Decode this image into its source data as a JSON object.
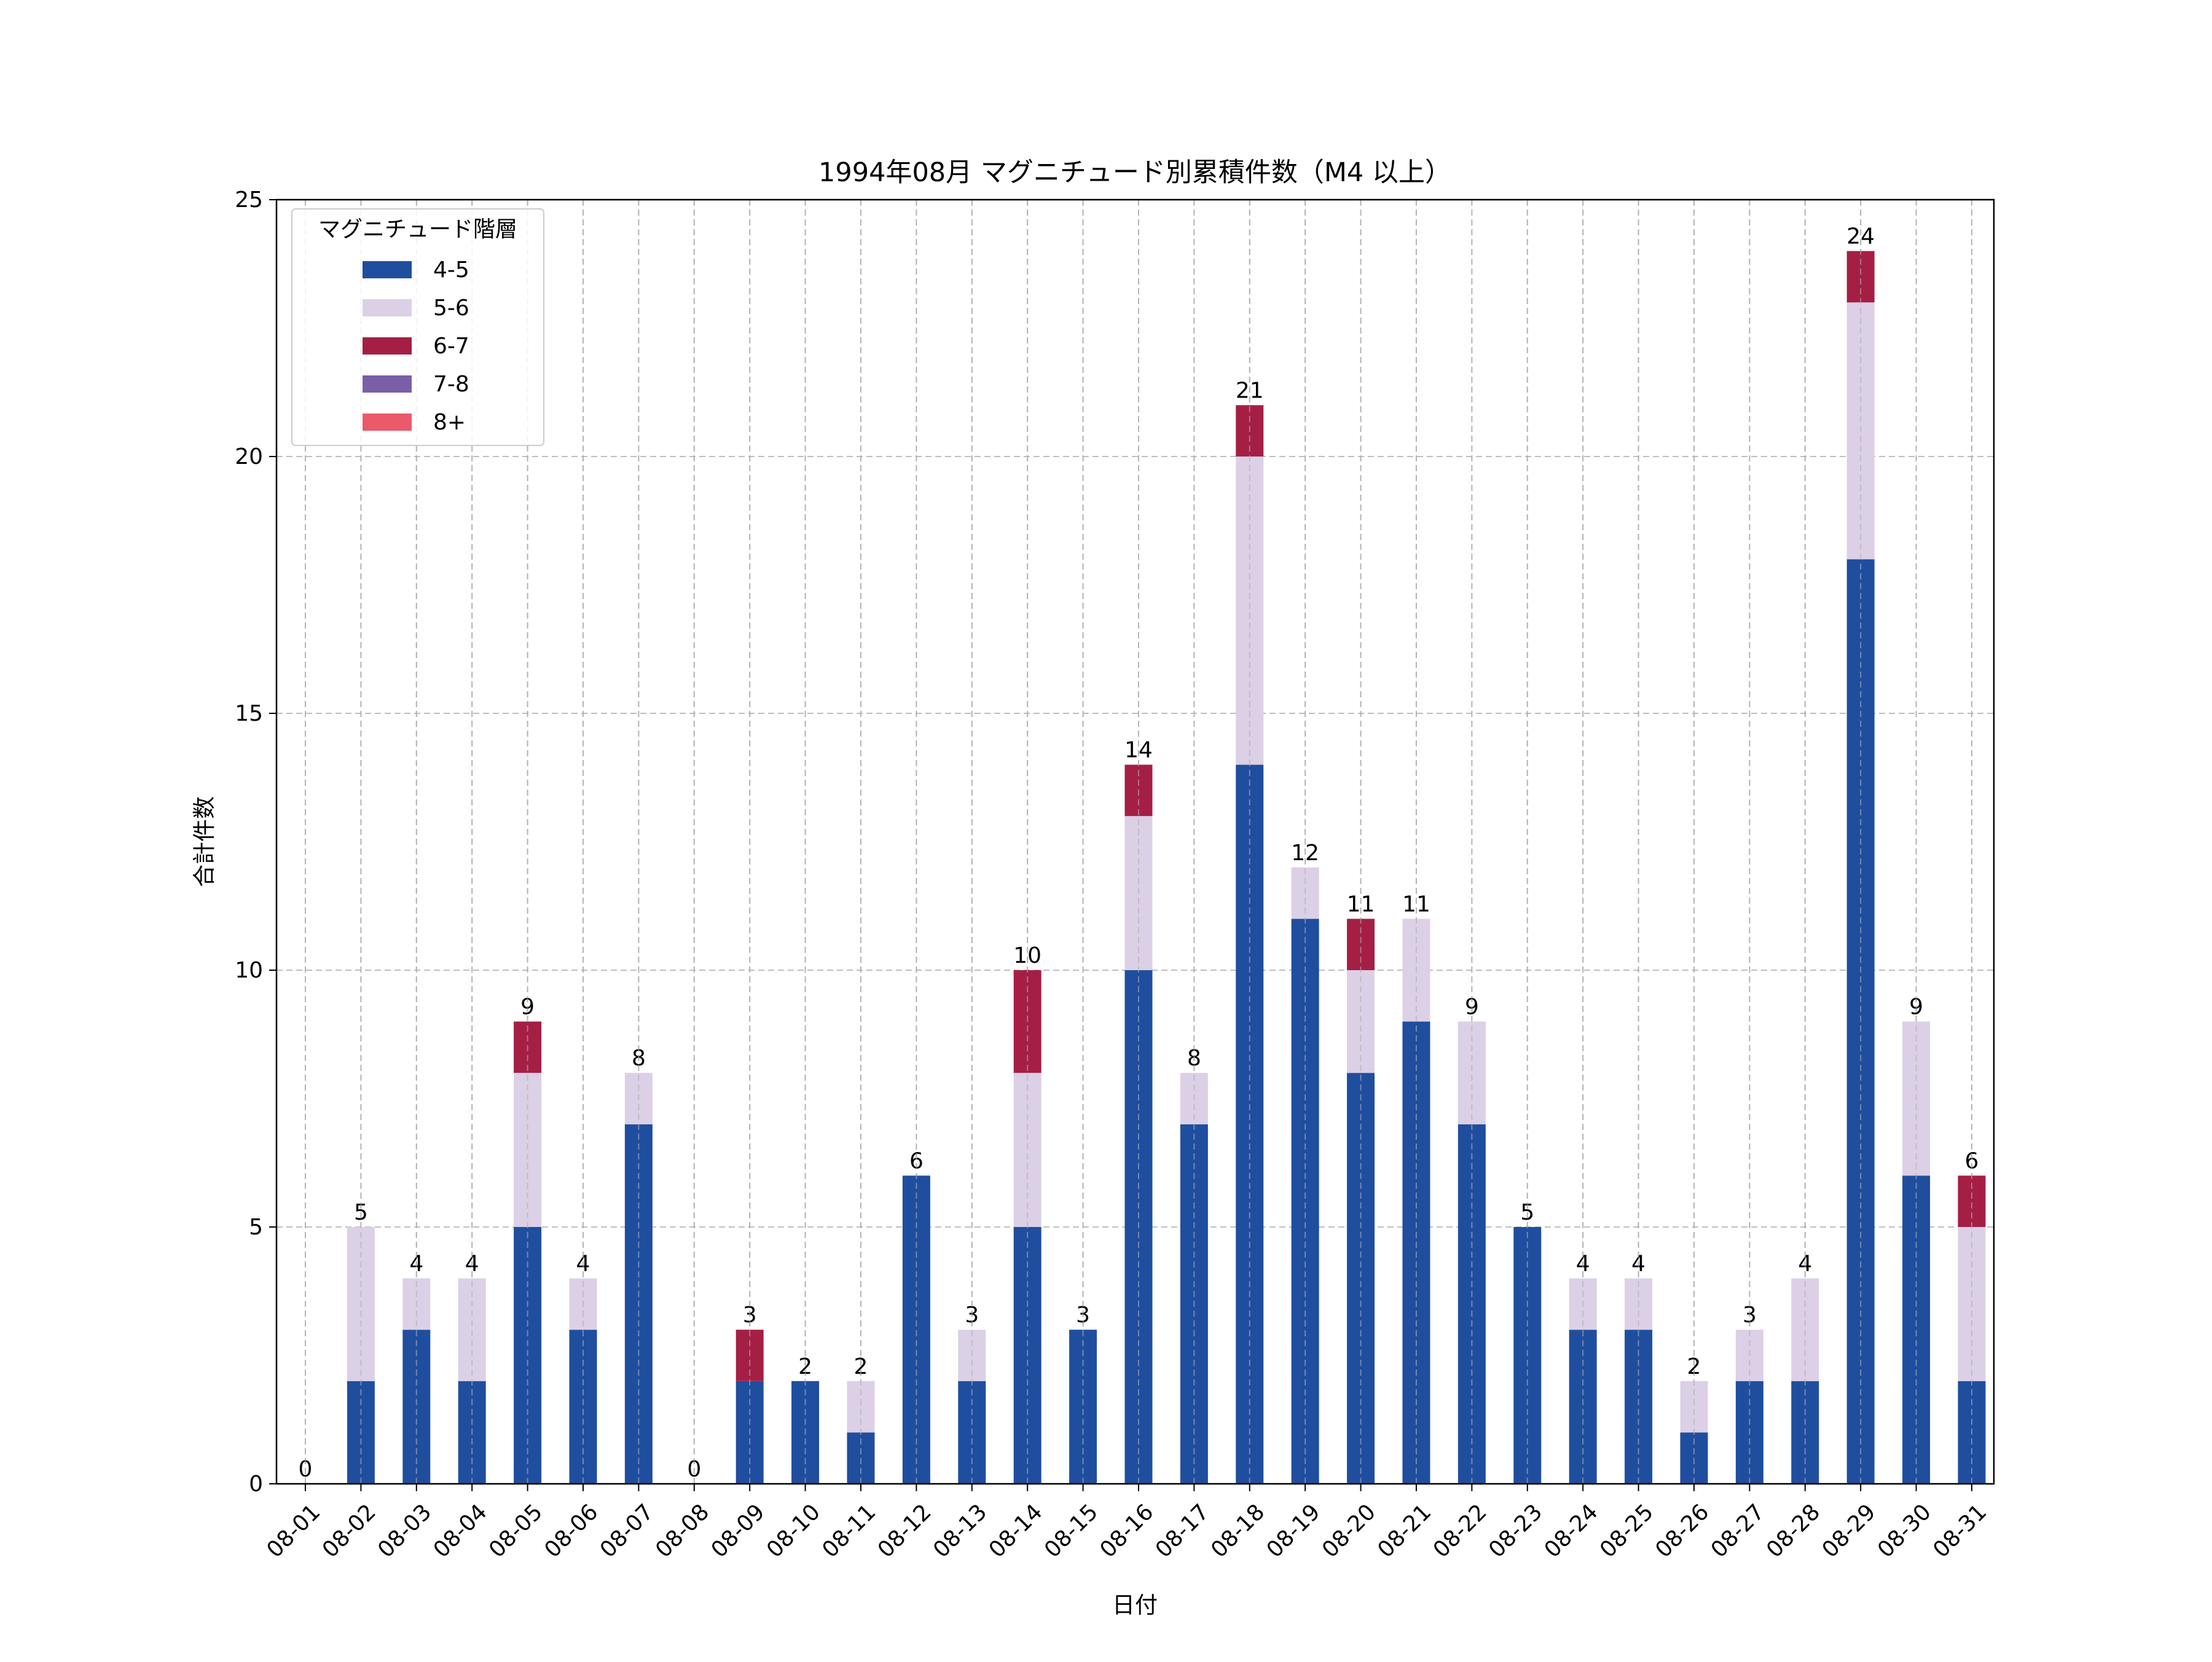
{
  "chart_data": {
    "type": "bar",
    "stacked": true,
    "title": "1994年08月 マグニチュード別累積件数（M4 以上）",
    "xlabel": "日付",
    "ylabel": "合計件数",
    "ylim": [
      0,
      25
    ],
    "yticks": [
      0,
      5,
      10,
      15,
      20,
      25
    ],
    "grid": true,
    "legend": {
      "title": "マグニチュード階層",
      "position": "top-left"
    },
    "categories": [
      "08-01",
      "08-02",
      "08-03",
      "08-04",
      "08-05",
      "08-06",
      "08-07",
      "08-08",
      "08-09",
      "08-10",
      "08-11",
      "08-12",
      "08-13",
      "08-14",
      "08-15",
      "08-16",
      "08-17",
      "08-18",
      "08-19",
      "08-20",
      "08-21",
      "08-22",
      "08-23",
      "08-24",
      "08-25",
      "08-26",
      "08-27",
      "08-28",
      "08-29",
      "08-30",
      "08-31"
    ],
    "series": [
      {
        "name": "4-5",
        "color": "#1f4e9f",
        "values": [
          0,
          2,
          3,
          2,
          5,
          3,
          7,
          0,
          2,
          2,
          1,
          6,
          2,
          5,
          3,
          10,
          7,
          14,
          11,
          8,
          9,
          7,
          5,
          3,
          3,
          1,
          2,
          2,
          18,
          6,
          2
        ]
      },
      {
        "name": "5-6",
        "color": "#dcd0e6",
        "values": [
          0,
          3,
          1,
          2,
          3,
          1,
          1,
          0,
          0,
          0,
          1,
          0,
          1,
          3,
          0,
          3,
          1,
          6,
          1,
          2,
          2,
          2,
          0,
          1,
          1,
          1,
          1,
          2,
          5,
          3,
          3
        ]
      },
      {
        "name": "6-7",
        "color": "#a51f45",
        "values": [
          0,
          0,
          0,
          0,
          1,
          0,
          0,
          0,
          1,
          0,
          0,
          0,
          0,
          2,
          0,
          1,
          0,
          1,
          0,
          1,
          0,
          0,
          0,
          0,
          0,
          0,
          0,
          0,
          1,
          0,
          1
        ]
      },
      {
        "name": "7-8",
        "color": "#7a5fa8",
        "values": [
          0,
          0,
          0,
          0,
          0,
          0,
          0,
          0,
          0,
          0,
          0,
          0,
          0,
          0,
          0,
          0,
          0,
          0,
          0,
          0,
          0,
          0,
          0,
          0,
          0,
          0,
          0,
          0,
          0,
          0,
          0
        ]
      },
      {
        "name": "8+",
        "color": "#ea5a6a",
        "values": [
          0,
          0,
          0,
          0,
          0,
          0,
          0,
          0,
          0,
          0,
          0,
          0,
          0,
          0,
          0,
          0,
          0,
          0,
          0,
          0,
          0,
          0,
          0,
          0,
          0,
          0,
          0,
          0,
          0,
          0,
          0
        ]
      }
    ],
    "totals": [
      0,
      5,
      4,
      4,
      9,
      4,
      8,
      0,
      3,
      2,
      2,
      6,
      3,
      10,
      3,
      14,
      8,
      21,
      12,
      11,
      11,
      9,
      5,
      4,
      4,
      2,
      3,
      4,
      24,
      9,
      6
    ]
  }
}
